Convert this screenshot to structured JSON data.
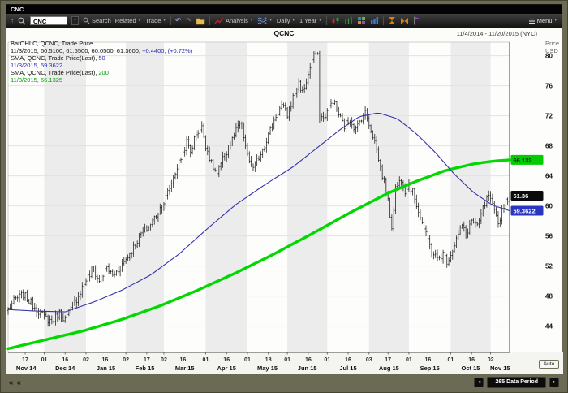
{
  "titlebar": {
    "title": "CNC"
  },
  "icons": {
    "caret": "▼",
    "up": "↑",
    "undo": "↶",
    "redo": "↷",
    "left": "◄",
    "right": "►",
    "rewind": "«",
    "menu_caret": "▼"
  },
  "toolbar": {
    "symbol_input": "CNC",
    "search_label": "Search",
    "related_label": "Related",
    "trade_label": "Trade",
    "analysis_label": "Analysis",
    "daily_label": "Daily",
    "range_label": "1 Year",
    "menu_label": "Menu"
  },
  "header": {
    "title": "QCNC",
    "date_range": "11/4/2014 - 11/20/2015 (NYC)"
  },
  "legend": {
    "line1": "BarOHLC, QCNC, Trade Price",
    "line2a": "11/3/2015, 60.5100, 61.5500, 60.0500, 61.3600, ",
    "line2b": "+0.4400, (+0.72%)",
    "line3a": "SMA, QCNC, Trade Price(Last), ",
    "line3b": "50",
    "line4": "11/3/2015, 59.3622",
    "line5a": "SMA, QCNC, Trade Price(Last), ",
    "line5b": "200",
    "line6": "11/3/2015, 66.1325"
  },
  "bottom": {
    "data_period": "265 Data Period",
    "auto_label": "Auto"
  },
  "chart_data": {
    "type": "ohlc",
    "title": "QCNC",
    "symbol": "QCNC",
    "ylabel_lines": [
      "Price",
      "USD"
    ],
    "yticks": [
      80,
      76,
      72,
      68,
      64,
      60,
      56,
      52,
      48,
      44
    ],
    "y_range": [
      40.5,
      81.8
    ],
    "n_points": 265,
    "last_bar": {
      "date": "11/3/2015",
      "open": 60.51,
      "high": 61.55,
      "low": 60.05,
      "close": 61.36,
      "change": 0.44,
      "change_pct": 0.72
    },
    "close_anchors": [
      [
        0,
        46.3
      ],
      [
        4,
        47.6
      ],
      [
        8,
        48.2
      ],
      [
        12,
        47.1
      ],
      [
        16,
        46.0
      ],
      [
        19,
        45.2
      ],
      [
        23,
        44.6
      ],
      [
        27,
        45.8
      ],
      [
        30,
        44.9
      ],
      [
        34,
        46.6
      ],
      [
        38,
        48.6
      ],
      [
        41,
        50.2
      ],
      [
        45,
        51.4
      ],
      [
        48,
        49.9
      ],
      [
        52,
        51.8
      ],
      [
        55,
        50.7
      ],
      [
        58,
        51.5
      ],
      [
        62,
        52.9
      ],
      [
        66,
        54.5
      ],
      [
        70,
        56.3
      ],
      [
        74,
        57.2
      ],
      [
        78,
        58.8
      ],
      [
        82,
        60.5
      ],
      [
        85,
        62.4
      ],
      [
        88,
        64.5
      ],
      [
        91,
        66.4
      ],
      [
        94,
        68.5
      ],
      [
        96,
        67.2
      ],
      [
        99,
        69.7
      ],
      [
        102,
        70.4
      ],
      [
        104,
        68.2
      ],
      [
        107,
        65.6
      ],
      [
        110,
        64.2
      ],
      [
        113,
        66.1
      ],
      [
        116,
        67.6
      ],
      [
        119,
        69.4
      ],
      [
        122,
        71.0
      ],
      [
        124,
        69.2
      ],
      [
        126,
        66.6
      ],
      [
        129,
        64.9
      ],
      [
        132,
        66.5
      ],
      [
        135,
        68.2
      ],
      [
        138,
        70.1
      ],
      [
        141,
        72.0
      ],
      [
        144,
        73.4
      ],
      [
        147,
        72.1
      ],
      [
        150,
        74.4
      ],
      [
        153,
        76.4
      ],
      [
        155,
        75.1
      ],
      [
        158,
        77.4
      ],
      [
        160,
        79.4
      ],
      [
        162,
        80.3
      ],
      [
        163,
        79.8
      ],
      [
        164,
        72.0
      ],
      [
        166,
        71.6
      ],
      [
        168,
        72.6
      ],
      [
        171,
        74.1
      ],
      [
        174,
        72.2
      ],
      [
        177,
        70.6
      ],
      [
        180,
        71.6
      ],
      [
        183,
        70.1
      ],
      [
        186,
        71.8
      ],
      [
        188,
        72.4
      ],
      [
        190,
        71.0
      ],
      [
        193,
        68.6
      ],
      [
        196,
        65.1
      ],
      [
        199,
        62.1
      ],
      [
        202,
        57.2
      ],
      [
        204,
        62.4
      ],
      [
        207,
        63.6
      ],
      [
        209,
        62.1
      ],
      [
        211,
        63.1
      ],
      [
        214,
        61.1
      ],
      [
        217,
        58.6
      ],
      [
        220,
        56.1
      ],
      [
        223,
        54.1
      ],
      [
        226,
        52.9
      ],
      [
        229,
        53.6
      ],
      [
        231,
        52.7
      ],
      [
        233,
        53.6
      ],
      [
        236,
        55.6
      ],
      [
        239,
        57.4
      ],
      [
        241,
        56.1
      ],
      [
        244,
        58.1
      ],
      [
        247,
        57.1
      ],
      [
        250,
        59.6
      ],
      [
        253,
        61.4
      ],
      [
        256,
        59.1
      ],
      [
        258,
        57.6
      ],
      [
        260,
        59.4
      ],
      [
        262,
        60.8
      ],
      [
        264,
        61.36
      ]
    ],
    "sma50_anchors": [
      [
        0,
        46.2
      ],
      [
        15,
        46.0
      ],
      [
        30,
        45.9
      ],
      [
        45,
        47.2
      ],
      [
        60,
        48.8
      ],
      [
        75,
        50.8
      ],
      [
        90,
        53.6
      ],
      [
        105,
        57.0
      ],
      [
        120,
        60.2
      ],
      [
        135,
        62.8
      ],
      [
        150,
        65.2
      ],
      [
        165,
        68.2
      ],
      [
        175,
        70.2
      ],
      [
        185,
        71.9
      ],
      [
        195,
        72.4
      ],
      [
        205,
        71.6
      ],
      [
        215,
        69.6
      ],
      [
        225,
        67.1
      ],
      [
        235,
        64.2
      ],
      [
        245,
        61.8
      ],
      [
        255,
        60.1
      ],
      [
        264,
        59.36
      ]
    ],
    "sma200_anchors": [
      [
        0,
        41.0
      ],
      [
        20,
        42.2
      ],
      [
        40,
        43.4
      ],
      [
        60,
        44.9
      ],
      [
        80,
        46.7
      ],
      [
        100,
        48.8
      ],
      [
        120,
        51.1
      ],
      [
        140,
        53.6
      ],
      [
        160,
        56.3
      ],
      [
        180,
        59.1
      ],
      [
        200,
        61.7
      ],
      [
        215,
        63.3
      ],
      [
        230,
        64.7
      ],
      [
        245,
        65.6
      ],
      [
        255,
        65.95
      ],
      [
        264,
        66.13
      ]
    ],
    "months": [
      {
        "label": "Nov 14",
        "start": 0
      },
      {
        "label": "Dec 14",
        "start": 19
      },
      {
        "label": "Jan 15",
        "start": 41
      },
      {
        "label": "Feb 15",
        "start": 62
      },
      {
        "label": "Mar 15",
        "start": 82
      },
      {
        "label": "Apr 15",
        "start": 104
      },
      {
        "label": "May 15",
        "start": 126
      },
      {
        "label": "Jun 15",
        "start": 147
      },
      {
        "label": "Jul 15",
        "start": 168
      },
      {
        "label": "Aug 15",
        "start": 190
      },
      {
        "label": "Sep 15",
        "start": 211
      },
      {
        "label": "Oct 15",
        "start": 233
      },
      {
        "label": "Nov 15",
        "start": 254
      }
    ],
    "minor_ticks": [
      {
        "label": "17",
        "i": 9
      },
      {
        "label": "01",
        "i": 19
      },
      {
        "label": "16",
        "i": 30
      },
      {
        "label": "02",
        "i": 41
      },
      {
        "label": "16",
        "i": 51
      },
      {
        "label": "02",
        "i": 62
      },
      {
        "label": "17",
        "i": 73
      },
      {
        "label": "02",
        "i": 82
      },
      {
        "label": "16",
        "i": 92
      },
      {
        "label": "01",
        "i": 104
      },
      {
        "label": "16",
        "i": 115
      },
      {
        "label": "01",
        "i": 126
      },
      {
        "label": "18",
        "i": 137
      },
      {
        "label": "01",
        "i": 147
      },
      {
        "label": "16",
        "i": 158
      },
      {
        "label": "01",
        "i": 168
      },
      {
        "label": "16",
        "i": 179
      },
      {
        "label": "03",
        "i": 190
      },
      {
        "label": "17",
        "i": 200
      },
      {
        "label": "01",
        "i": 211
      },
      {
        "label": "16",
        "i": 221
      },
      {
        "label": "01",
        "i": 233
      },
      {
        "label": "16",
        "i": 244
      },
      {
        "label": "02",
        "i": 254
      }
    ],
    "last_prices": {
      "sma200": {
        "value": 66.132,
        "label": "66.132",
        "fill": "#00cc00",
        "text": "#052b05"
      },
      "close": {
        "value": 61.36,
        "label": "61.36",
        "fill": "#0a0a0a",
        "text": "#ffffff"
      },
      "sma50": {
        "value": 59.36,
        "label": "59.3622",
        "fill": "#2a35c0",
        "text": "#ffffff"
      }
    },
    "colors": {
      "bar": "#1c1c1c",
      "sma50": "#3333aa",
      "sma200": "#00d800",
      "stripe": "#ececec",
      "grid": "#e2e2e2"
    }
  }
}
